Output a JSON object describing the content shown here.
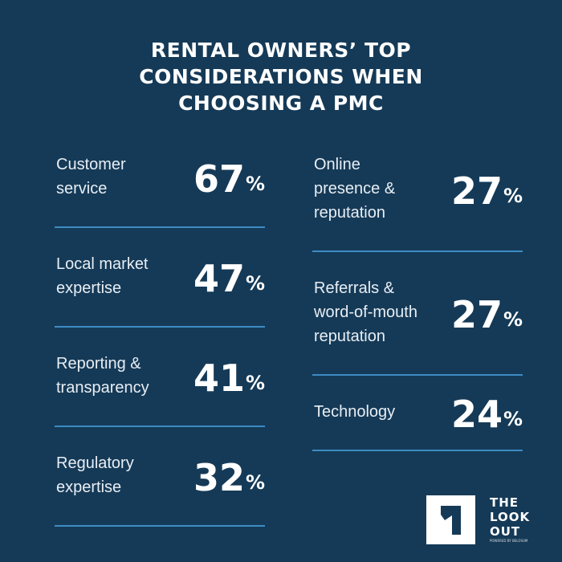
{
  "title_lines": [
    "RENTAL OWNERS’ TOP",
    "CONSIDERATIONS WHEN",
    "CHOOSING A PMC"
  ],
  "chart_data": {
    "type": "table",
    "title": "RENTAL OWNERS’ TOP CONSIDERATIONS WHEN CHOOSING A PMC",
    "unit": "%",
    "columns": [
      [
        {
          "label_lines": [
            "Customer",
            "service"
          ],
          "value": 67
        },
        {
          "label_lines": [
            "Local market",
            "expertise"
          ],
          "value": 47
        },
        {
          "label_lines": [
            "Reporting &",
            "transparency"
          ],
          "value": 41
        },
        {
          "label_lines": [
            "Regulatory",
            "expertise"
          ],
          "value": 32
        }
      ],
      [
        {
          "label_lines": [
            "Online",
            "presence &",
            "reputation"
          ],
          "value": 27
        },
        {
          "label_lines": [
            "Referrals &",
            "word-of-mouth",
            "reputation"
          ],
          "value": 27
        },
        {
          "label_lines": [
            "Technology"
          ],
          "value": 24
        }
      ]
    ]
  },
  "logo": {
    "lines": [
      "THE",
      "LOOK",
      "OUT"
    ],
    "tagline": "POWERED BY BELOSUM"
  },
  "colors": {
    "background": "#153a57",
    "divider": "#3d8bc4",
    "text": "#ffffff"
  }
}
